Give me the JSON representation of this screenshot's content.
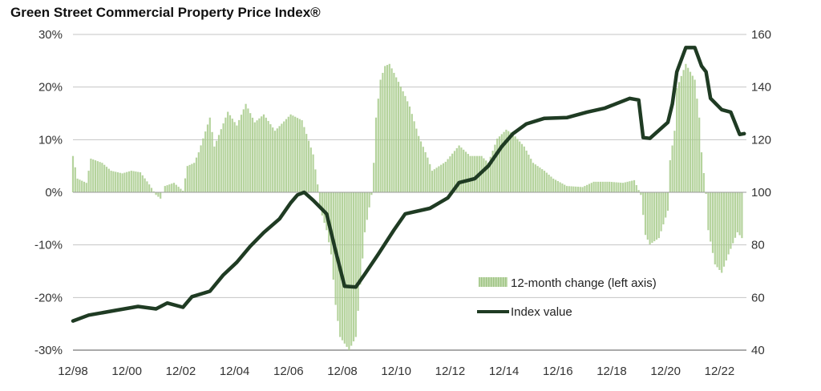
{
  "chart_data": {
    "type": "bar+line",
    "title": "Green Street Commercial Property Price Index®",
    "left_axis": {
      "ticks": [
        "30%",
        "20%",
        "10%",
        "0%",
        "-10%",
        "-20%",
        "-30%"
      ],
      "ylim": [
        -30,
        30
      ],
      "unit": "%"
    },
    "right_axis": {
      "ticks": [
        "160",
        "140",
        "120",
        "100",
        "80",
        "60",
        "40"
      ],
      "ylim": [
        40,
        160
      ]
    },
    "x_ticks": [
      "12/98",
      "12/00",
      "12/02",
      "12/04",
      "12/06",
      "12/08",
      "12/10",
      "12/12",
      "12/14",
      "12/16",
      "12/18",
      "12/20",
      "12/22"
    ],
    "grid": true,
    "legend_placement": "bottom-right",
    "colors": {
      "bars": "#a8cb8c",
      "line": "#1f3b23",
      "grid": "#c4c4c4"
    },
    "series": [
      {
        "name": "12-month change (left axis)",
        "type": "bar",
        "axis": "left",
        "points": [
          [
            "1998-12",
            6.9
          ],
          [
            "1999-02",
            2.6
          ],
          [
            "1999-06",
            1.8
          ],
          [
            "1999-08",
            6.4
          ],
          [
            "2000-01",
            5.6
          ],
          [
            "2000-05",
            4.1
          ],
          [
            "2000-10",
            3.6
          ],
          [
            "2001-02",
            4.1
          ],
          [
            "2001-06",
            3.8
          ],
          [
            "2001-10",
            1.5
          ],
          [
            "2002-01",
            -0.5
          ],
          [
            "2002-03",
            -1.2
          ],
          [
            "2002-05",
            1.2
          ],
          [
            "2002-09",
            1.8
          ],
          [
            "2003-01",
            0.3
          ],
          [
            "2003-03",
            5.0
          ],
          [
            "2003-06",
            5.6
          ],
          [
            "2003-08",
            7.6
          ],
          [
            "2004-01",
            14.2
          ],
          [
            "2004-03",
            8.7
          ],
          [
            "2004-09",
            15.3
          ],
          [
            "2005-01",
            12.7
          ],
          [
            "2005-05",
            16.8
          ],
          [
            "2005-09",
            13.3
          ],
          [
            "2006-01",
            14.8
          ],
          [
            "2006-06",
            11.7
          ],
          [
            "2007-01",
            14.8
          ],
          [
            "2007-06",
            13.7
          ],
          [
            "2007-11",
            7.2
          ],
          [
            "2008-01",
            1.5
          ],
          [
            "2008-02",
            -3.0
          ],
          [
            "2008-05",
            -7.2
          ],
          [
            "2008-07",
            -11.8
          ],
          [
            "2008-09",
            -21.4
          ],
          [
            "2008-11",
            -27.5
          ],
          [
            "2009-03",
            -30.0
          ],
          [
            "2009-06",
            -27.5
          ],
          [
            "2009-10",
            -7.6
          ],
          [
            "2010-01",
            -0.5
          ],
          [
            "2010-02",
            5.6
          ],
          [
            "2010-03",
            14.2
          ],
          [
            "2010-05",
            21.4
          ],
          [
            "2010-07",
            24.0
          ],
          [
            "2010-09",
            24.4
          ],
          [
            "2011-01",
            21.0
          ],
          [
            "2011-04",
            18.3
          ],
          [
            "2011-06",
            16.3
          ],
          [
            "2011-10",
            10.7
          ],
          [
            "2012-02",
            6.6
          ],
          [
            "2012-04",
            4.1
          ],
          [
            "2012-10",
            5.8
          ],
          [
            "2013-04",
            8.9
          ],
          [
            "2013-09",
            6.9
          ],
          [
            "2014-02",
            6.9
          ],
          [
            "2014-05",
            5.6
          ],
          [
            "2014-09",
            10.2
          ],
          [
            "2015-01",
            11.9
          ],
          [
            "2015-04",
            11.1
          ],
          [
            "2015-09",
            8.7
          ],
          [
            "2016-01",
            5.6
          ],
          [
            "2016-06",
            4.1
          ],
          [
            "2016-10",
            2.6
          ],
          [
            "2017-04",
            1.2
          ],
          [
            "2017-11",
            1.0
          ],
          [
            "2018-04",
            2.0
          ],
          [
            "2018-11",
            2.0
          ],
          [
            "2019-05",
            1.8
          ],
          [
            "2019-10",
            2.3
          ],
          [
            "2020-01",
            -0.5
          ],
          [
            "2020-03",
            -8.1
          ],
          [
            "2020-05",
            -9.9
          ],
          [
            "2020-09",
            -8.7
          ],
          [
            "2021-01",
            -3.5
          ],
          [
            "2021-02",
            6.1
          ],
          [
            "2021-04",
            11.7
          ],
          [
            "2021-05",
            19.8
          ],
          [
            "2021-09",
            24.4
          ],
          [
            "2022-01",
            21.4
          ],
          [
            "2022-03",
            14.2
          ],
          [
            "2022-04",
            7.6
          ],
          [
            "2022-06",
            -0.3
          ],
          [
            "2022-07",
            -7.2
          ],
          [
            "2022-10",
            -13.7
          ],
          [
            "2023-01",
            -15.3
          ],
          [
            "2023-04",
            -11.8
          ],
          [
            "2023-08",
            -7.6
          ],
          [
            "2023-10",
            -8.7
          ]
        ]
      },
      {
        "name": "Index value",
        "type": "line",
        "axis": "right",
        "points": [
          [
            "1998-12",
            51.1
          ],
          [
            "1999-07",
            53.3
          ],
          [
            "2000-07",
            55.1
          ],
          [
            "2001-05",
            56.6
          ],
          [
            "2002-01",
            55.7
          ],
          [
            "2002-06",
            57.9
          ],
          [
            "2003-01",
            56.3
          ],
          [
            "2003-05",
            60.3
          ],
          [
            "2004-01",
            62.4
          ],
          [
            "2004-07",
            68.6
          ],
          [
            "2005-01",
            73.4
          ],
          [
            "2005-07",
            79.5
          ],
          [
            "2006-01",
            84.7
          ],
          [
            "2006-08",
            89.9
          ],
          [
            "2007-01",
            96.0
          ],
          [
            "2007-04",
            99.0
          ],
          [
            "2007-07",
            100.0
          ],
          [
            "2007-11",
            97.0
          ],
          [
            "2008-05",
            91.8
          ],
          [
            "2008-09",
            77.7
          ],
          [
            "2009-01",
            64.3
          ],
          [
            "2009-06",
            64.0
          ],
          [
            "2009-10",
            68.9
          ],
          [
            "2010-04",
            76.5
          ],
          [
            "2010-11",
            85.7
          ],
          [
            "2011-04",
            91.8
          ],
          [
            "2012-03",
            93.9
          ],
          [
            "2012-11",
            97.9
          ],
          [
            "2013-04",
            103.7
          ],
          [
            "2013-11",
            105.2
          ],
          [
            "2014-05",
            110.0
          ],
          [
            "2014-11",
            117.4
          ],
          [
            "2015-04",
            122.3
          ],
          [
            "2015-10",
            126.0
          ],
          [
            "2016-06",
            128.1
          ],
          [
            "2017-04",
            128.4
          ],
          [
            "2018-01",
            130.5
          ],
          [
            "2018-09",
            132.0
          ],
          [
            "2019-08",
            135.7
          ],
          [
            "2019-12",
            135.1
          ],
          [
            "2020-02",
            120.8
          ],
          [
            "2020-05",
            120.5
          ],
          [
            "2021-01",
            126.6
          ],
          [
            "2021-03",
            133.6
          ],
          [
            "2021-05",
            145.8
          ],
          [
            "2021-09",
            155.0
          ],
          [
            "2022-01",
            155.0
          ],
          [
            "2022-04",
            148.0
          ],
          [
            "2022-06",
            145.8
          ],
          [
            "2022-08",
            135.7
          ],
          [
            "2023-01",
            131.4
          ],
          [
            "2023-05",
            130.5
          ],
          [
            "2023-09",
            122.0
          ],
          [
            "2023-11",
            122.3
          ]
        ]
      }
    ]
  }
}
